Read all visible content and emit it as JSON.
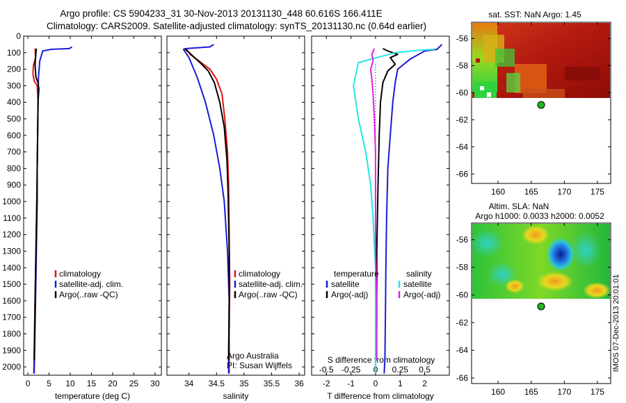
{
  "header": {
    "line1": "Argo profile: CS 5904233_31 30-Nov-2013 20131130_448 60.616S 166.411E",
    "line2": "Climatology: CARS2009. Satellite-adjusted climatology: synTS_20131130.nc (0.64d earlier)"
  },
  "colors": {
    "climatology": "#e01010",
    "satellite": "#1a1ad6",
    "argo": "#000000",
    "satellite_light": "#22e6e6",
    "argo_adj": "#e020e0",
    "marker": "#1fb81f"
  },
  "chart_data": [
    {
      "type": "line",
      "name": "temperature-panel",
      "xlabel": "temperature (deg C)",
      "xlim": [
        -1,
        31.5
      ],
      "xticks": [
        0,
        5,
        10,
        15,
        20,
        25,
        30
      ],
      "ylim": [
        0,
        2050
      ],
      "yticks": [
        0,
        100,
        200,
        300,
        400,
        500,
        600,
        700,
        800,
        900,
        1000,
        1100,
        1200,
        1300,
        1400,
        1500,
        1600,
        1700,
        1800,
        1900,
        2000
      ],
      "legend": [
        {
          "label": "climatology",
          "color": "#e01010"
        },
        {
          "label": "satellite-adj. clim.",
          "color": "#1a1ad6"
        },
        {
          "label": "Argo(..raw -QC)",
          "color": "#000000"
        }
      ],
      "series": [
        {
          "name": "climatology",
          "color": "#e01010",
          "x": [
            1.7,
            1.8,
            1.3,
            1.2,
            1.5,
            2.2,
            2.4,
            2.3,
            2.2,
            2.1,
            1.9,
            1.7,
            1.5,
            1.4
          ],
          "y": [
            75,
            130,
            180,
            230,
            270,
            300,
            400,
            600,
            800,
            1000,
            1300,
            1600,
            1900,
            2040
          ]
        },
        {
          "name": "satellite-adj. clim.",
          "color": "#1a1ad6",
          "x": [
            10.4,
            9.8,
            5.5,
            3.5,
            2.8,
            2.5,
            2.4,
            2.3,
            2.2,
            2.2,
            2.0,
            1.8,
            1.6,
            1.5
          ],
          "y": [
            65,
            75,
            80,
            90,
            150,
            250,
            400,
            600,
            800,
            1000,
            1300,
            1600,
            1900,
            2040
          ]
        },
        {
          "name": "Argo(..raw -QC)",
          "color": "#000000",
          "x": [
            2.0,
            1.9,
            1.7,
            1.9,
            2.4,
            2.6,
            2.4,
            2.3,
            2.2,
            2.1,
            1.9,
            1.7,
            1.5
          ],
          "y": [
            75,
            100,
            170,
            250,
            280,
            320,
            400,
            600,
            800,
            1000,
            1300,
            1600,
            1960
          ]
        }
      ]
    },
    {
      "type": "line",
      "name": "salinity-panel",
      "xlabel": "salinity",
      "xlim": [
        33.6,
        36.1
      ],
      "xticks": [
        34,
        34.5,
        35,
        35.5,
        36
      ],
      "xtick_labels": [
        "34",
        "34.5",
        "35",
        "35.5",
        "36"
      ],
      "ylim": [
        0,
        2050
      ],
      "legend": [
        {
          "label": "climatology",
          "color": "#e01010"
        },
        {
          "label": "satellite-adj. clim.",
          "color": "#1a1ad6"
        },
        {
          "label": "Argo(..raw -QC)",
          "color": "#000000"
        }
      ],
      "annotation": [
        "Argo Australia",
        "PI: Susan Wijffels"
      ],
      "series": [
        {
          "name": "climatology",
          "color": "#e01010",
          "x": [
            33.95,
            34.02,
            34.18,
            34.38,
            34.5,
            34.6,
            34.65,
            34.7,
            34.72,
            34.73,
            34.74,
            34.73,
            34.73
          ],
          "y": [
            75,
            110,
            150,
            200,
            260,
            350,
            500,
            700,
            900,
            1200,
            1500,
            1800,
            2040
          ]
        },
        {
          "name": "satellite-adj. clim.",
          "color": "#1a1ad6",
          "x": [
            34.45,
            34.38,
            33.95,
            33.9,
            34.0,
            34.15,
            34.3,
            34.45,
            34.56,
            34.64,
            34.7,
            34.73,
            34.72,
            34.72
          ],
          "y": [
            50,
            65,
            75,
            80,
            130,
            250,
            400,
            600,
            800,
            1000,
            1300,
            1600,
            1900,
            2040
          ]
        },
        {
          "name": "Argo(..raw -QC)",
          "color": "#000000",
          "x": [
            33.92,
            34.02,
            34.2,
            34.35,
            34.46,
            34.56,
            34.64,
            34.69,
            34.71,
            34.73,
            34.73,
            34.72
          ],
          "y": [
            75,
            105,
            160,
            210,
            280,
            400,
            550,
            750,
            950,
            1300,
            1600,
            1960
          ]
        }
      ]
    },
    {
      "type": "line",
      "name": "difference-panel",
      "xlabel": "T difference from climatology",
      "xlim": [
        -2.6,
        3.0
      ],
      "xticks": [
        -2,
        -1,
        0,
        1,
        2
      ],
      "top_axis_label": "S difference from climatology",
      "top_ticks": [
        -0.5,
        -0.25,
        0,
        0.25,
        0.5
      ],
      "top_tick_labels": [
        "-0.5",
        "-0.25",
        "0",
        "0.25",
        "0.5"
      ],
      "ylim": [
        0,
        2050
      ],
      "legend": [
        {
          "label": "temperature",
          "color": ""
        },
        {
          "label": "satellite",
          "color": "#1a1ad6"
        },
        {
          "label": "Argo(-adj)",
          "color": "#000000"
        },
        {
          "label": "salinity",
          "color": ""
        },
        {
          "label": "satellite",
          "color": "#22e6e6"
        },
        {
          "label": "Argo(-adj)",
          "color": "#e020e0"
        }
      ],
      "series": [
        {
          "name": "temperature satellite",
          "color": "#1a1ad6",
          "x": [
            2.7,
            2.5,
            2.0,
            1.4,
            0.9,
            0.8,
            0.7,
            0.6,
            0.5,
            0.45,
            0.42,
            0.4,
            0.38,
            0.35
          ],
          "y": [
            50,
            80,
            90,
            140,
            200,
            280,
            400,
            600,
            800,
            1100,
            1400,
            1700,
            1950,
            2040
          ]
        },
        {
          "name": "Argo(-adj)",
          "color": "#000000",
          "x": [
            0.3,
            0.5,
            0.9,
            0.6,
            0.8,
            0.5,
            0.3,
            0.2,
            0.15,
            0.1,
            0.05,
            0.05,
            0.03
          ],
          "y": [
            75,
            90,
            110,
            130,
            170,
            210,
            280,
            400,
            600,
            900,
            1300,
            1700,
            1960
          ]
        },
        {
          "name": "salinity satellite",
          "color": "#22e6e6",
          "x": [
            2.4,
            1.8,
            0.8,
            -0.7,
            -0.9,
            -0.7,
            -0.4,
            -0.2,
            -0.1,
            0.0,
            0.0,
            0.0,
            0.0
          ],
          "y": [
            80,
            85,
            100,
            160,
            300,
            500,
            700,
            900,
            1100,
            1400,
            1700,
            1900,
            2040
          ]
        },
        {
          "name": "salinity Argo(-adj)",
          "color": "#e020e0",
          "x": [
            -0.05,
            -0.15,
            -0.1,
            -0.2,
            -0.15,
            -0.1,
            -0.05,
            0.0,
            0.0,
            0.0,
            0.05,
            0.05
          ],
          "y": [
            75,
            110,
            150,
            200,
            260,
            350,
            500,
            700,
            900,
            1300,
            1600,
            1960
          ]
        }
      ]
    },
    {
      "type": "heatmap",
      "name": "sst-map",
      "title": "sat. SST: NaN Argo: 1.45",
      "xlim": [
        156,
        177
      ],
      "xticks": [
        160,
        165,
        170,
        175
      ],
      "ylim": [
        -66.7,
        -54.8
      ],
      "yticks": [
        -56,
        -58,
        -60,
        -62,
        -64,
        -66
      ],
      "argo_position": [
        166.411,
        -60.616
      ],
      "data_lat_min": -60
    },
    {
      "type": "heatmap",
      "name": "sla-map",
      "title_lines": [
        "Altim. SLA: NaN",
        "Argo h1000: 0.0033 h2000: 0.0052"
      ],
      "xlim": [
        156,
        177
      ],
      "xticks": [
        160,
        165,
        170,
        175
      ],
      "ylim": [
        -66.4,
        -54.8
      ],
      "yticks": [
        -56,
        -58,
        -60,
        -62,
        -64,
        -66
      ],
      "argo_position": [
        166.411,
        -60.616
      ],
      "data_lat_min": -60
    }
  ],
  "footer": {
    "stamp": "IMOS 07-Dec-2013 20:01:01"
  }
}
